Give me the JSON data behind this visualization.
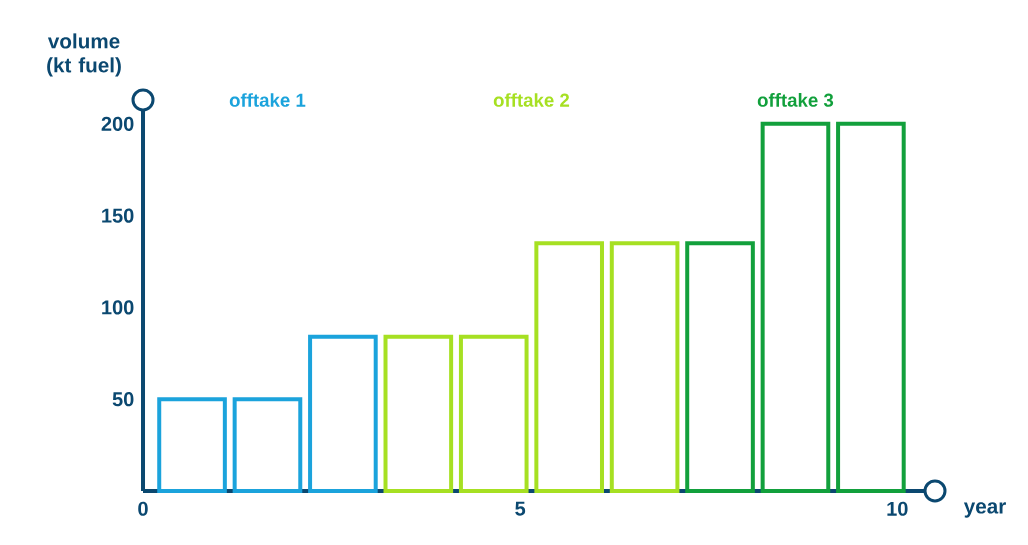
{
  "chart_data": {
    "type": "bar",
    "xlabel": "year",
    "ylabel": "volume (kt fuel)",
    "xlim": [
      0,
      10.5
    ],
    "ylim": [
      0,
      213
    ],
    "xticks": [
      0,
      5,
      10
    ],
    "yticks": [
      50,
      100,
      150,
      200
    ],
    "series": [
      {
        "name": "offtake 1",
        "color": "#1ba3dc",
        "x": [
          0.65,
          1.65,
          2.65
        ],
        "values": [
          50,
          50,
          84
        ]
      },
      {
        "name": "offtake 2",
        "color": "#a6e022",
        "x": [
          3.65,
          4.65,
          5.65,
          6.65
        ],
        "values": [
          84,
          84,
          135,
          135
        ]
      },
      {
        "name": "offtake 3",
        "color": "#12a03c",
        "x": [
          7.65,
          8.65,
          9.65
        ],
        "values": [
          135,
          200,
          200
        ]
      }
    ]
  }
}
